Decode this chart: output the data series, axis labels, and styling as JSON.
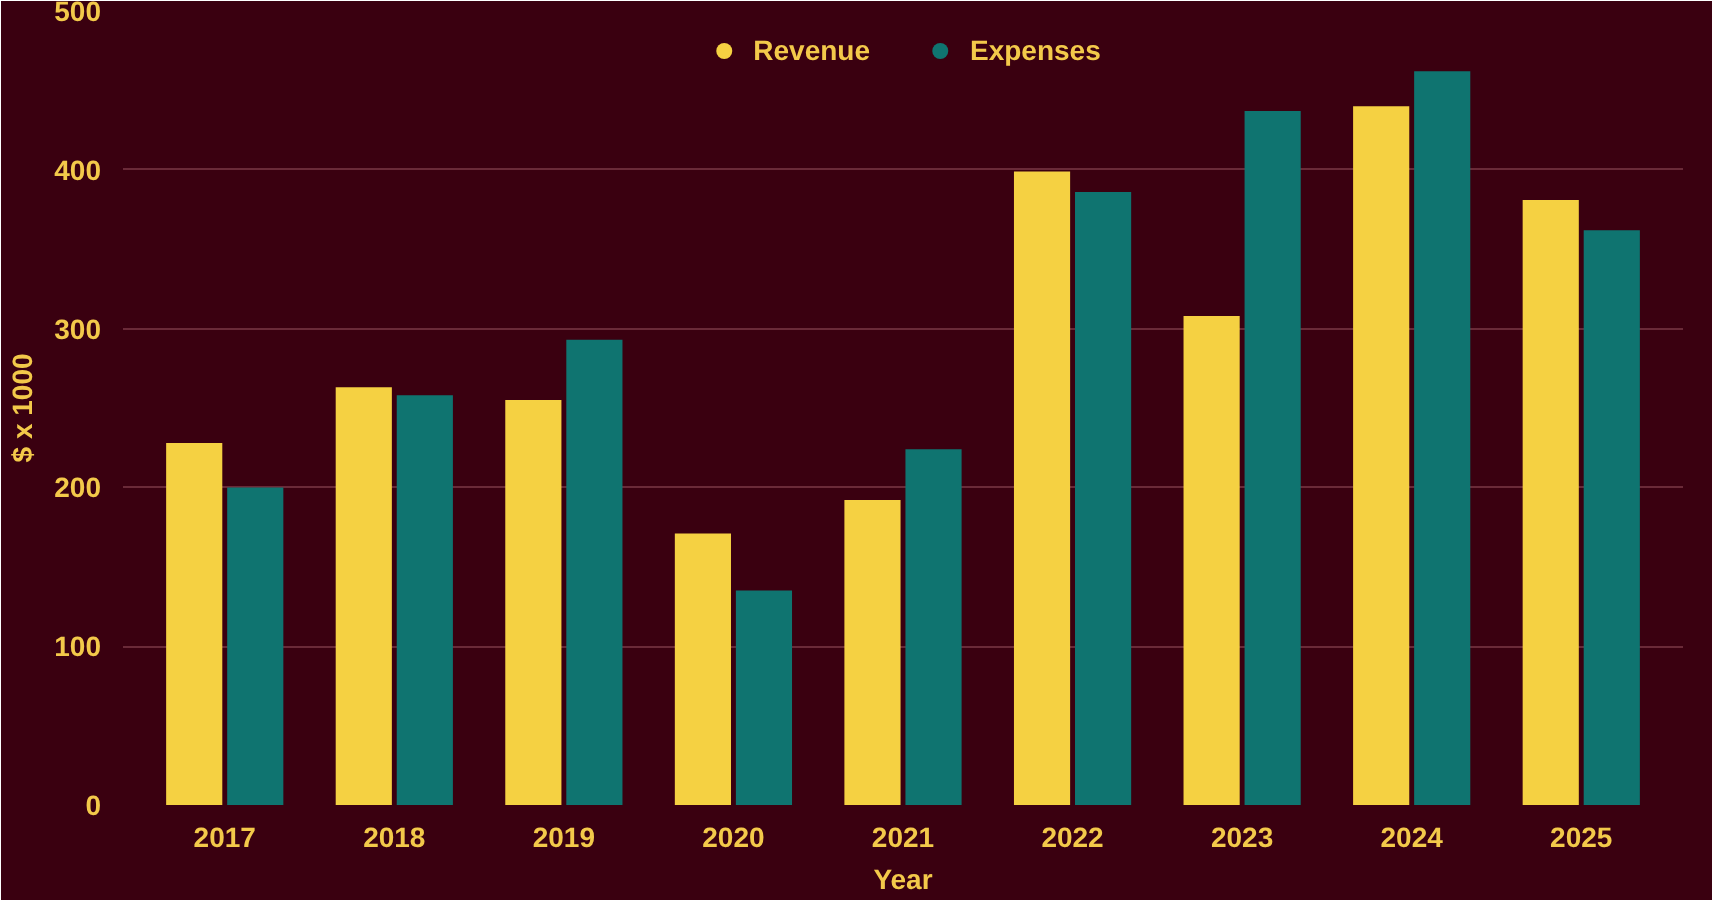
{
  "chart_data": {
    "type": "bar",
    "xlabel": "Year",
    "ylabel": "$ x 1000",
    "categories": [
      "2017",
      "2018",
      "2019",
      "2020",
      "2021",
      "2022",
      "2023",
      "2024",
      "2025"
    ],
    "series": [
      {
        "name": "Revenue",
        "color": "#f5d142",
        "values": [
          228,
          263,
          255,
          171,
          192,
          399,
          308,
          440,
          381
        ]
      },
      {
        "name": "Expenses",
        "color": "#0f7470",
        "values": [
          200,
          258,
          293,
          135,
          224,
          386,
          437,
          462,
          362
        ]
      }
    ],
    "ylim": [
      0,
      500
    ],
    "yticks": [
      0,
      100,
      200,
      300,
      400,
      500
    ],
    "grid": "y",
    "legend": "top",
    "marker": "circle"
  }
}
